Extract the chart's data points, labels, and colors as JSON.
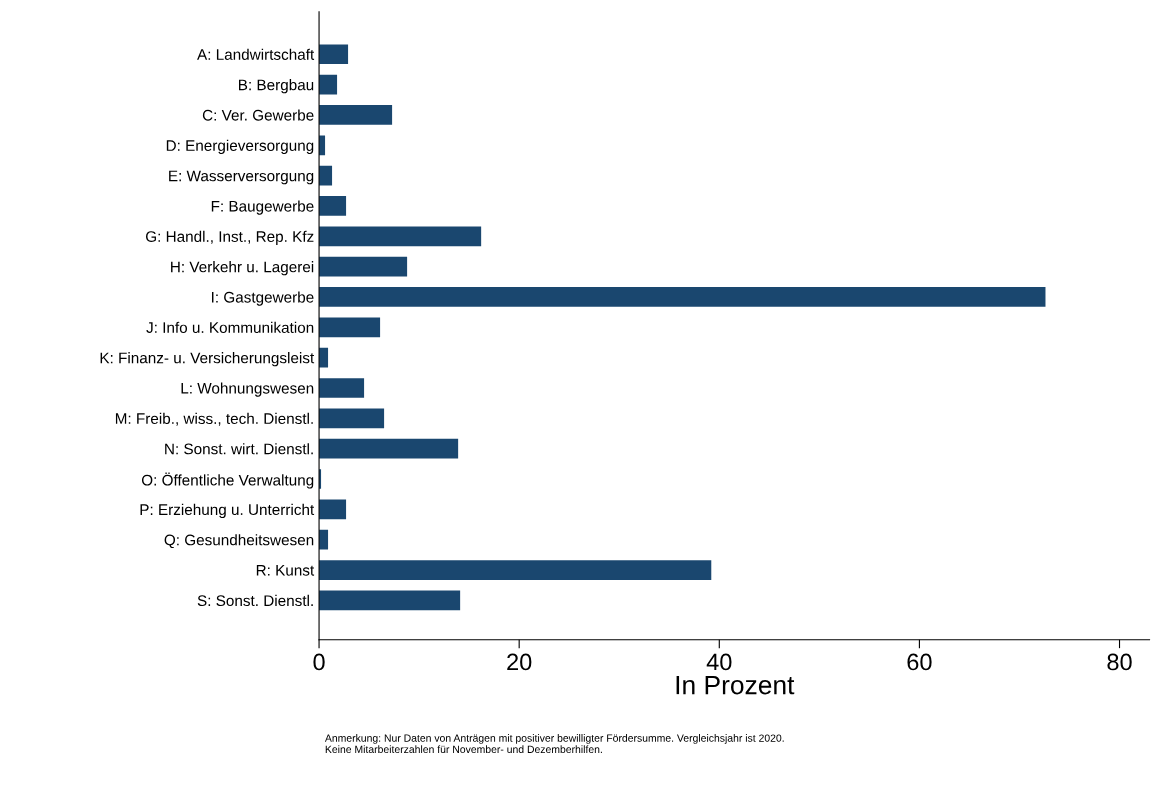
{
  "chart_data": {
    "type": "bar",
    "orientation": "horizontal",
    "xlabel": "In Prozent",
    "categories": [
      "A: Landwirtschaft",
      "B: Bergbau",
      "C: Ver. Gewerbe",
      "D: Energieversorgung",
      "E: Wasserversorgung",
      "F: Baugewerbe",
      "G: Handl., Inst., Rep. Kfz",
      "H: Verkehr u. Lagerei",
      "I: Gastgewerbe",
      "J: Info u. Kommunikation",
      "K: Finanz- u. Versicherungsleist",
      "L: Wohnungswesen",
      "M: Freib., wiss., tech. Dienstl.",
      "N: Sonst. wirt. Dienstl.",
      "O: Öffentliche Verwaltung",
      "P: Erziehung u. Unterricht",
      "Q: Gesundheitswesen",
      "R: Kunst",
      "S: Sonst. Dienstl."
    ],
    "values": [
      2.9,
      1.8,
      7.3,
      0.6,
      1.3,
      2.7,
      16.2,
      8.8,
      72.6,
      6.1,
      0.9,
      4.5,
      6.5,
      13.9,
      0.2,
      2.7,
      0.9,
      39.2,
      14.1
    ],
    "color": "#1a476f",
    "xlim": [
      0,
      83
    ],
    "xticks": [
      0,
      20,
      40,
      60,
      80
    ],
    "grid": false,
    "annotations": [
      "Anmerkung: Nur Daten von Anträgen mit positiver bewilligter Fördersumme. Vergleichsjahr ist 2020.\nKeine Mitarbeiterzahlen für November- und Dezemberhilfen."
    ]
  }
}
